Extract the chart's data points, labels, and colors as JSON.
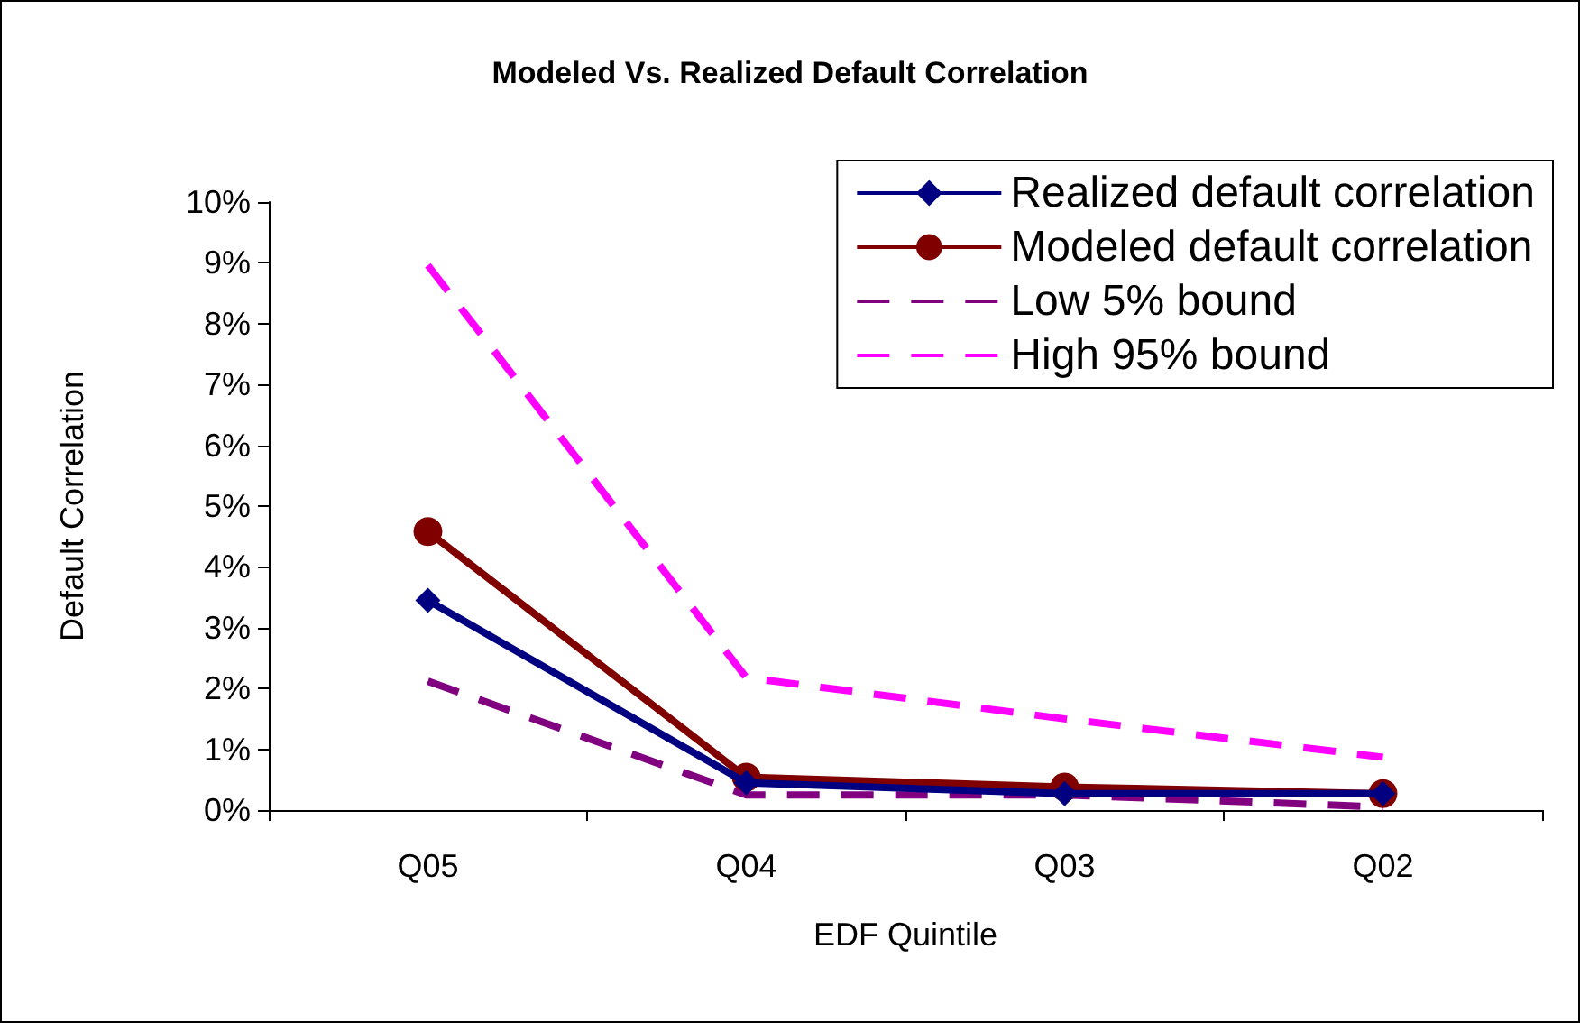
{
  "chart_data": {
    "type": "line",
    "title": "Modeled Vs. Realized Default Correlation",
    "xlabel": "EDF Quintile",
    "ylabel": "Default Correlation",
    "categories": [
      "Q05",
      "Q04",
      "Q03",
      "Q02"
    ],
    "series": [
      {
        "name": "Realized default correlation",
        "color": "#000080",
        "values": [
          3.45,
          0.45,
          0.27,
          0.27
        ],
        "marker": "diamond",
        "line_style": "solid"
      },
      {
        "name": "Modeled default correlation",
        "color": "#800000",
        "values": [
          4.58,
          0.54,
          0.38,
          0.27
        ],
        "marker": "circle",
        "line_style": "solid"
      },
      {
        "name": "Low 5% bound",
        "color": "#800080",
        "values": [
          2.12,
          0.25,
          0.25,
          0.05
        ],
        "marker": "none",
        "line_style": "dashed"
      },
      {
        "name": "High 95% bound",
        "color": "#ff00ff",
        "values": [
          8.96,
          2.18,
          1.5,
          0.87
        ],
        "marker": "none",
        "line_style": "dashed"
      }
    ],
    "ylim": [
      0,
      10
    ],
    "yticks": [
      {
        "value": 0,
        "label": "0%"
      },
      {
        "value": 1,
        "label": "1%"
      },
      {
        "value": 2,
        "label": "2%"
      },
      {
        "value": 3,
        "label": "3%"
      },
      {
        "value": 4,
        "label": "4%"
      },
      {
        "value": 5,
        "label": "5%"
      },
      {
        "value": 6,
        "label": "6%"
      },
      {
        "value": 7,
        "label": "7%"
      },
      {
        "value": 8,
        "label": "8%"
      },
      {
        "value": 9,
        "label": "9%"
      },
      {
        "value": 10,
        "label": "10%"
      }
    ],
    "grid": false,
    "legend": "top right"
  }
}
